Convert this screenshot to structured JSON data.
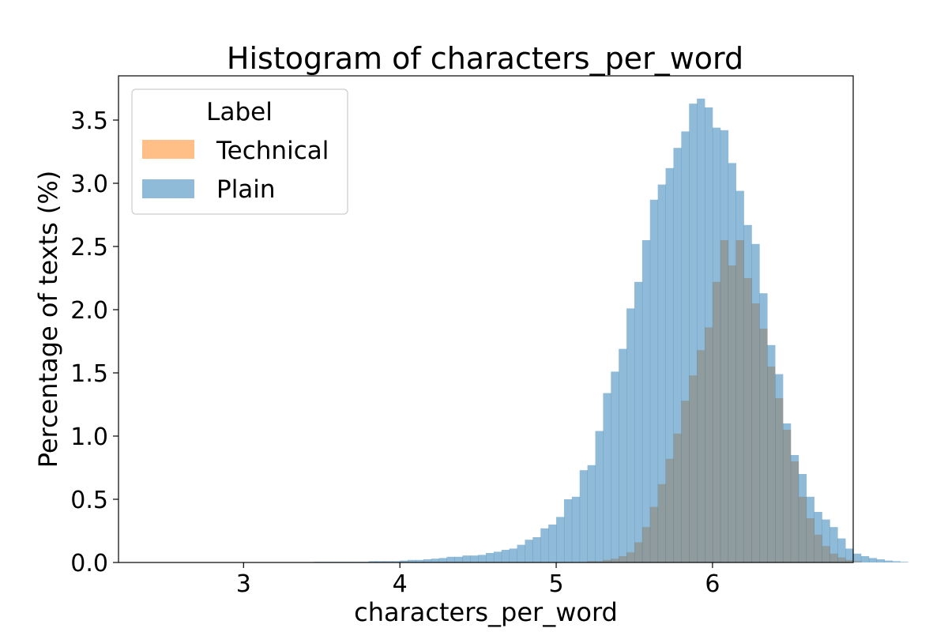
{
  "chart_data": {
    "type": "bar",
    "title": "Histogram of characters_per_word",
    "xlabel": "characters_per_word",
    "ylabel": "Percentage of texts (%)",
    "xlim": [
      2.2,
      6.9
    ],
    "ylim": [
      0,
      3.85
    ],
    "xticks": [
      3,
      4,
      5,
      6
    ],
    "xtick_labels": [
      "3",
      "4",
      "5",
      "6"
    ],
    "yticks": [
      0,
      0.5,
      1.0,
      1.5,
      2.0,
      2.5,
      3.0,
      3.5
    ],
    "ytick_labels": [
      "0.0",
      "0.5",
      "1.0",
      "1.5",
      "2.0",
      "2.5",
      "3.0",
      "3.5"
    ],
    "grid": false,
    "legend": {
      "title": "Label",
      "placement": "top-left"
    },
    "bin_start": 2.3,
    "bin_width": 0.05,
    "series": [
      {
        "name": "Technical",
        "color": "#ff7f0e",
        "opacity": 0.5,
        "values": [
          0,
          0,
          0,
          0,
          0,
          0,
          0,
          0,
          0,
          0,
          0,
          0,
          0,
          0,
          0,
          0,
          0,
          0,
          0,
          0,
          0,
          0,
          0,
          0,
          0,
          0,
          0,
          0,
          0,
          0,
          0,
          0,
          0,
          0,
          0,
          0,
          0,
          0,
          0,
          0,
          0,
          0,
          0,
          0,
          0,
          0,
          0,
          0,
          0,
          0,
          0,
          0,
          0,
          0,
          0,
          0,
          0,
          0,
          0.01,
          0.01,
          0.02,
          0.03,
          0.05,
          0.08,
          0.16,
          0.28,
          0.44,
          0.62,
          0.82,
          1.02,
          1.28,
          1.48,
          1.68,
          1.86,
          2.22,
          2.55,
          2.35,
          2.55,
          2.25,
          2.05,
          1.85,
          1.55,
          1.3,
          1.05,
          0.8,
          0.52,
          0.35,
          0.22,
          0.13,
          0.07,
          0.04,
          0.02,
          0.01,
          0,
          0,
          0,
          0,
          0,
          0
        ]
      },
      {
        "name": "Plain",
        "color": "#1f77b4",
        "opacity": 0.5,
        "values": [
          0,
          0,
          0,
          0,
          0,
          0,
          0,
          0,
          0,
          0,
          0,
          0,
          0,
          0,
          0,
          0,
          0,
          0,
          0,
          0,
          0,
          0,
          0,
          0.005,
          0.005,
          0.005,
          0.005,
          0.005,
          0.005,
          0.005,
          0.01,
          0.01,
          0.01,
          0.01,
          0.015,
          0.02,
          0.02,
          0.025,
          0.03,
          0.035,
          0.045,
          0.045,
          0.055,
          0.055,
          0.06,
          0.075,
          0.085,
          0.1,
          0.11,
          0.14,
          0.18,
          0.2,
          0.27,
          0.3,
          0.36,
          0.5,
          0.52,
          0.73,
          0.77,
          1.04,
          1.34,
          1.51,
          1.69,
          2.01,
          2.22,
          2.55,
          2.87,
          2.99,
          3.12,
          3.28,
          3.41,
          3.63,
          3.67,
          3.6,
          3.44,
          3.42,
          3.16,
          2.94,
          2.67,
          2.52,
          2.13,
          1.72,
          1.49,
          1.1,
          0.85,
          0.7,
          0.52,
          0.4,
          0.34,
          0.28,
          0.19,
          0.11,
          0.07,
          0.05,
          0.035,
          0.025,
          0.015,
          0.01,
          0.005
        ]
      }
    ]
  }
}
